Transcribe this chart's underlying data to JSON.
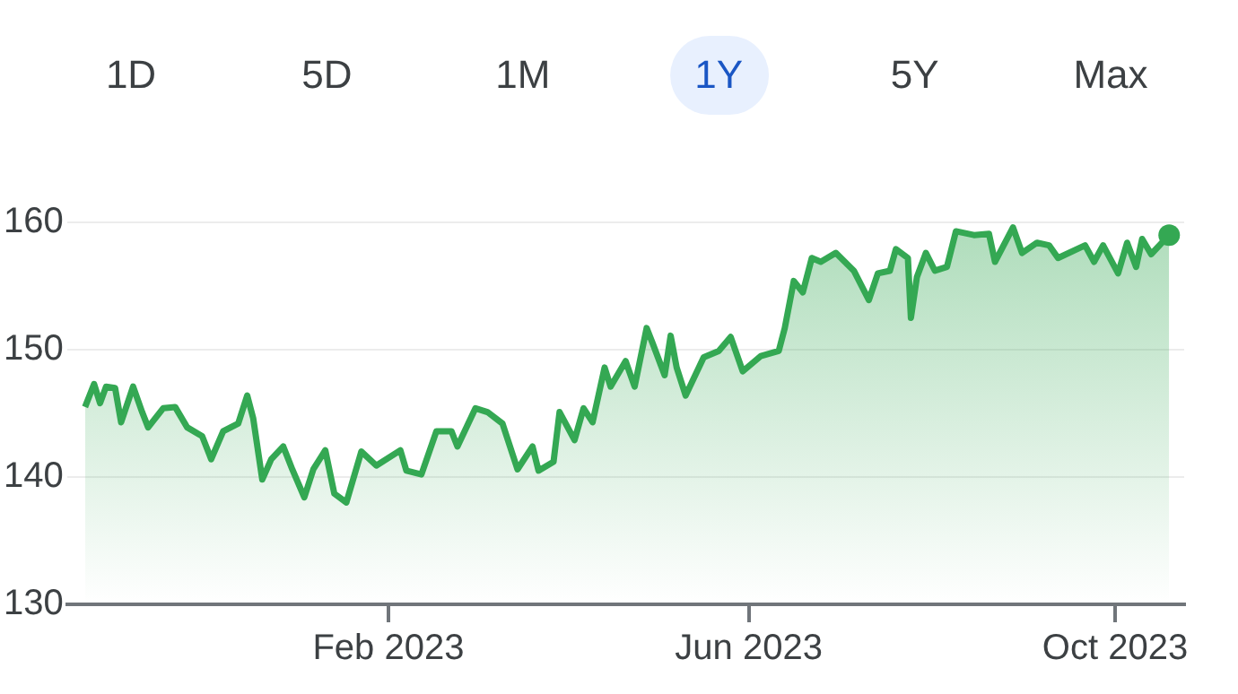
{
  "chart_data": {
    "type": "area",
    "annotations": [
      "1D",
      "5D",
      "1M",
      "1Y",
      "5Y",
      "Max"
    ],
    "x": [
      "2022-10-23",
      "2022-10-26",
      "2022-10-28",
      "2022-10-30",
      "2022-11-02",
      "2022-11-04",
      "2022-11-08",
      "2022-11-11",
      "2022-11-13",
      "2022-11-18",
      "2022-11-22",
      "2022-11-26",
      "2022-12-01",
      "2022-12-04",
      "2022-12-08",
      "2022-12-13",
      "2022-12-16",
      "2022-12-18",
      "2022-12-21",
      "2022-12-24",
      "2022-12-28",
      "2022-12-31",
      "2023-01-04",
      "2023-01-07",
      "2023-01-11",
      "2023-01-14",
      "2023-01-18",
      "2023-01-23",
      "2023-01-28",
      "2023-02-05",
      "2023-02-07",
      "2023-02-12",
      "2023-02-17",
      "2023-02-22",
      "2023-02-24",
      "2023-03-02",
      "2023-03-06",
      "2023-03-11",
      "2023-03-16",
      "2023-03-21",
      "2023-03-23",
      "2023-03-28",
      "2023-03-30",
      "2023-04-04",
      "2023-04-07",
      "2023-04-10",
      "2023-04-14",
      "2023-04-16",
      "2023-04-21",
      "2023-04-24",
      "2023-04-28",
      "2023-04-30",
      "2023-05-04",
      "2023-05-06",
      "2023-05-08",
      "2023-05-11",
      "2023-05-17",
      "2023-05-22",
      "2023-05-26",
      "2023-05-30",
      "2023-06-05",
      "2023-06-11",
      "2023-06-13",
      "2023-06-16",
      "2023-06-19",
      "2023-06-22",
      "2023-06-25",
      "2023-06-30",
      "2023-07-06",
      "2023-07-11",
      "2023-07-14",
      "2023-07-18",
      "2023-07-20",
      "2023-07-24",
      "2023-07-25",
      "2023-07-27",
      "2023-07-30",
      "2023-08-02",
      "2023-08-06",
      "2023-08-09",
      "2023-08-15",
      "2023-08-20",
      "2023-08-22",
      "2023-08-28",
      "2023-08-31",
      "2023-09-05",
      "2023-09-09",
      "2023-09-12",
      "2023-09-21",
      "2023-09-24",
      "2023-09-27",
      "2023-10-02",
      "2023-10-05",
      "2023-10-08",
      "2023-10-10",
      "2023-10-13",
      "2023-10-19"
    ],
    "series": [
      {
        "color": "#34a853",
        "values": [
          145.5,
          147.3,
          145.8,
          147.1,
          147.0,
          144.3,
          147.1,
          145.1,
          143.9,
          145.4,
          145.5,
          143.9,
          143.2,
          141.4,
          143.6,
          144.2,
          146.4,
          144.6,
          139.8,
          141.4,
          142.4,
          140.6,
          138.4,
          140.6,
          142.1,
          138.7,
          138.0,
          142.0,
          140.9,
          142.1,
          140.5,
          140.2,
          143.6,
          143.6,
          142.4,
          145.4,
          145.1,
          144.2,
          140.6,
          142.4,
          140.5,
          141.2,
          145.1,
          142.9,
          145.4,
          144.3,
          148.6,
          147.1,
          149.1,
          147.1,
          151.7,
          150.5,
          148.0,
          151.1,
          148.6,
          146.4,
          149.4,
          149.9,
          151.0,
          148.3,
          149.5,
          149.9,
          151.7,
          155.4,
          154.5,
          157.2,
          156.9,
          157.6,
          156.2,
          153.9,
          156.0,
          156.2,
          157.9,
          157.2,
          152.5,
          155.7,
          157.6,
          156.2,
          156.5,
          159.3,
          159.0,
          159.1,
          156.9,
          159.6,
          157.6,
          158.4,
          158.2,
          157.2,
          158.2,
          156.9,
          158.2,
          156.0,
          158.4,
          156.5,
          158.7,
          157.5,
          159.0
        ]
      }
    ],
    "xlim": [
      "2022-10-17",
      "2023-10-24"
    ],
    "xticks": [
      {
        "value": "2023-02-01",
        "label": "Feb 2023"
      },
      {
        "value": "2023-06-01",
        "label": "Jun 2023"
      },
      {
        "value": "2023-10-01",
        "label": "Oct 2023"
      }
    ],
    "ylim": [
      130,
      160
    ],
    "yticks": [
      130,
      140,
      150,
      160
    ],
    "grid": "y",
    "legend": false
  }
}
